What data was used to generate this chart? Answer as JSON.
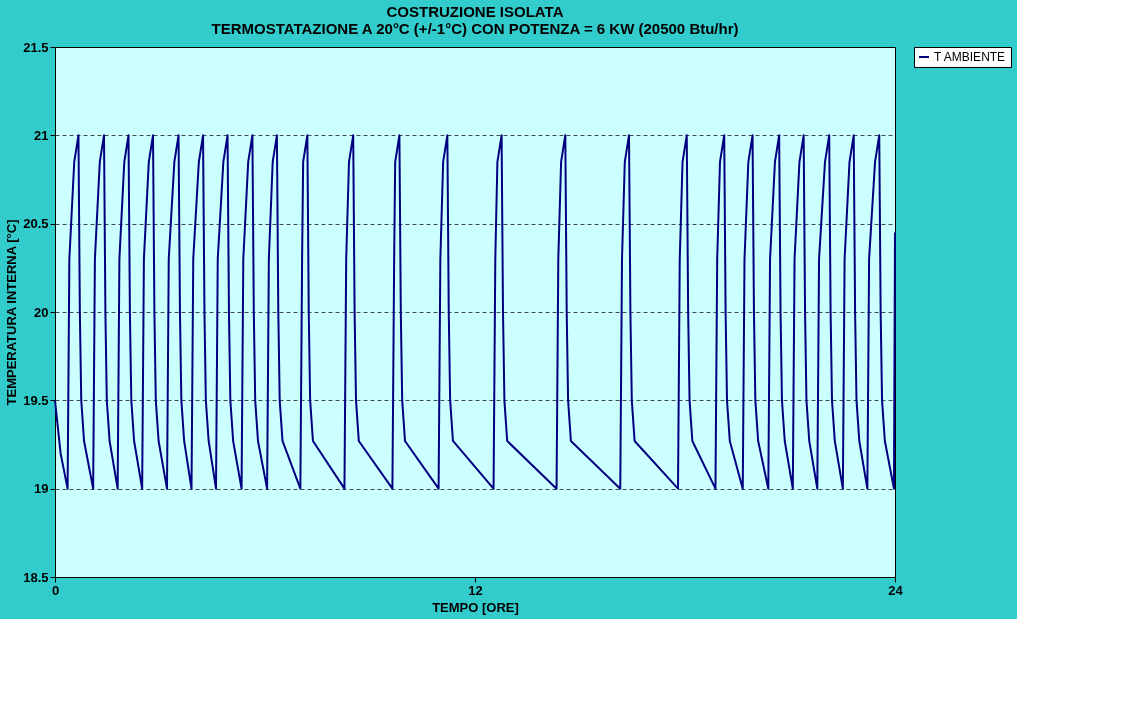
{
  "chart_data": {
    "type": "line",
    "title": [
      "COSTRUZIONE ISOLATA",
      "TERMOSTATAZIONE A 20°C (+/-1°C) CON POTENZA = 6 KW (20500 Btu/hr)"
    ],
    "xlabel": "TEMPO [ORE]",
    "ylabel": "TEMPERATURA INTERNA [°C]",
    "xlim": [
      0,
      24
    ],
    "xticks": [
      0,
      12,
      24
    ],
    "ylim": [
      18.5,
      21.5
    ],
    "yticks": [
      18.5,
      19,
      19.5,
      20,
      20.5,
      21,
      21.5
    ],
    "grid": "y",
    "legend": "right",
    "line_style": "solid",
    "marker": "none",
    "series": [
      {
        "name": "T AMBIENTE",
        "color": "#000080",
        "x": [
          0,
          0.16,
          0.36,
          0.41,
          0.55,
          0.67,
          0.71,
          0.75,
          0.83,
          1.09,
          1.14,
          1.28,
          1.4,
          1.44,
          1.48,
          1.56,
          1.79,
          1.84,
          1.98,
          2.1,
          2.14,
          2.18,
          2.26,
          2.49,
          2.54,
          2.68,
          2.8,
          2.84,
          2.88,
          2.96,
          3.2,
          3.25,
          3.41,
          3.53,
          3.57,
          3.61,
          3.69,
          3.9,
          3.95,
          4.11,
          4.23,
          4.27,
          4.31,
          4.39,
          4.6,
          4.65,
          4.81,
          4.93,
          4.97,
          5.01,
          5.09,
          5.33,
          5.38,
          5.52,
          5.64,
          5.68,
          5.72,
          5.8,
          6.06,
          6.11,
          6.22,
          6.34,
          6.38,
          6.42,
          6.5,
          7.01,
          7.06,
          7.09,
          7.21,
          7.25,
          7.29,
          7.37,
          8.27,
          8.32,
          8.4,
          8.52,
          8.56,
          8.6,
          8.68,
          9.64,
          9.69,
          9.72,
          9.84,
          9.88,
          9.92,
          10.0,
          10.96,
          11.01,
          11.09,
          11.21,
          11.25,
          11.29,
          11.37,
          12.53,
          12.58,
          12.64,
          12.76,
          12.8,
          12.84,
          12.92,
          14.33,
          14.38,
          14.46,
          14.58,
          14.62,
          14.66,
          14.74,
          16.15,
          16.2,
          16.28,
          16.4,
          16.44,
          16.48,
          16.56,
          17.8,
          17.85,
          17.93,
          18.05,
          18.09,
          18.13,
          18.21,
          18.87,
          18.92,
          19.0,
          19.12,
          19.16,
          19.2,
          19.28,
          19.65,
          19.7,
          19.81,
          19.93,
          19.97,
          20.01,
          20.09,
          20.38,
          20.43,
          20.57,
          20.69,
          20.73,
          20.77,
          20.85,
          21.08,
          21.13,
          21.27,
          21.39,
          21.43,
          21.47,
          21.55,
          21.78,
          21.83,
          22.0,
          22.12,
          22.16,
          22.2,
          22.28,
          22.51,
          22.56,
          22.7,
          22.82,
          22.86,
          22.9,
          22.98,
          23.21,
          23.26,
          23.43,
          23.55,
          23.59,
          23.63,
          23.71,
          23.97,
          24
        ],
        "values": [
          19.5,
          19.2,
          19,
          20.3,
          20.85,
          21,
          20,
          19.5,
          19.27,
          19,
          20.3,
          20.85,
          21,
          20,
          19.5,
          19.27,
          19,
          20.3,
          20.85,
          21,
          20,
          19.5,
          19.27,
          19,
          20.3,
          20.85,
          21,
          20,
          19.5,
          19.27,
          19,
          20.3,
          20.85,
          21,
          20,
          19.5,
          19.27,
          19,
          20.3,
          20.85,
          21,
          20,
          19.5,
          19.27,
          19,
          20.3,
          20.85,
          21,
          20,
          19.5,
          19.27,
          19,
          20.3,
          20.85,
          21,
          20,
          19.5,
          19.27,
          19,
          20.3,
          20.85,
          21,
          20,
          19.5,
          19.27,
          19,
          20.3,
          20.85,
          21,
          20,
          19.5,
          19.27,
          19,
          20.3,
          20.85,
          21,
          20,
          19.5,
          19.27,
          19,
          20.3,
          20.85,
          21,
          20,
          19.5,
          19.27,
          19,
          20.3,
          20.85,
          21,
          20,
          19.5,
          19.27,
          19,
          20.3,
          20.85,
          21,
          20,
          19.5,
          19.27,
          19,
          20.3,
          20.85,
          21,
          20,
          19.5,
          19.27,
          19,
          20.3,
          20.85,
          21,
          20,
          19.5,
          19.27,
          19,
          20.3,
          20.85,
          21,
          20,
          19.5,
          19.27,
          19,
          20.3,
          20.85,
          21,
          20,
          19.5,
          19.27,
          19,
          20.3,
          20.85,
          21,
          20,
          19.5,
          19.27,
          19,
          20.3,
          20.85,
          21,
          20,
          19.5,
          19.27,
          19,
          20.3,
          20.85,
          21,
          20,
          19.5,
          19.27,
          19,
          20.3,
          20.85,
          21,
          20,
          19.5,
          19.27,
          19,
          20.3,
          20.85,
          21,
          20,
          19.5,
          19.27,
          19,
          20.3,
          20.85,
          21,
          20,
          19.5,
          19.27,
          19,
          20.45
        ]
      }
    ]
  }
}
